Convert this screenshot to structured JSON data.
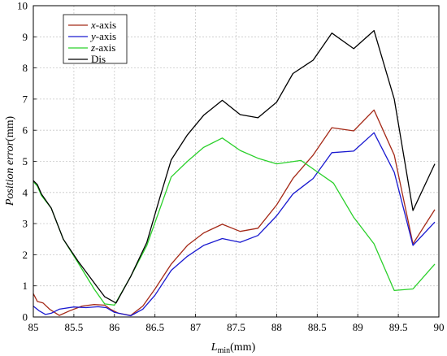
{
  "chart_data": {
    "type": "line",
    "xlabel": {
      "main": "L",
      "sub": "min",
      "unit": "(mm)"
    },
    "ylabel": {
      "main": "Position error",
      "unit": "(mm)"
    },
    "xlim": [
      85,
      90
    ],
    "ylim": [
      0,
      10
    ],
    "xticks": [
      "85",
      "85.5",
      "86",
      "86.5",
      "87",
      "87.5",
      "88",
      "88.5",
      "89",
      "89.5",
      "90"
    ],
    "yticks": [
      "0",
      "1",
      "2",
      "3",
      "4",
      "5",
      "6",
      "7",
      "8",
      "9",
      "10"
    ],
    "grid": true,
    "legend_position": "top-left",
    "series": [
      {
        "name": "x-axis",
        "italic": "x",
        "suffix": "-axis",
        "color": "#a52a18",
        "points": [
          [
            85.0,
            0.75
          ],
          [
            85.05,
            0.5
          ],
          [
            85.12,
            0.45
          ],
          [
            85.2,
            0.25
          ],
          [
            85.32,
            0.05
          ],
          [
            85.45,
            0.2
          ],
          [
            85.6,
            0.35
          ],
          [
            85.75,
            0.4
          ],
          [
            85.88,
            0.38
          ],
          [
            85.95,
            0.25
          ],
          [
            86.05,
            0.12
          ],
          [
            86.2,
            0.05
          ],
          [
            86.35,
            0.35
          ],
          [
            86.5,
            0.9
          ],
          [
            86.7,
            1.7
          ],
          [
            86.9,
            2.3
          ],
          [
            87.1,
            2.7
          ],
          [
            87.33,
            2.98
          ],
          [
            87.55,
            2.75
          ],
          [
            87.77,
            2.85
          ],
          [
            88.0,
            3.6
          ],
          [
            88.2,
            4.45
          ],
          [
            88.45,
            5.2
          ],
          [
            88.68,
            6.08
          ],
          [
            88.95,
            5.98
          ],
          [
            89.2,
            6.65
          ],
          [
            89.45,
            5.2
          ],
          [
            89.68,
            2.35
          ],
          [
            89.95,
            3.45
          ]
        ]
      },
      {
        "name": "y-axis",
        "italic": "y",
        "suffix": "-axis",
        "color": "#1a1ad0",
        "points": [
          [
            85.0,
            0.35
          ],
          [
            85.07,
            0.2
          ],
          [
            85.15,
            0.08
          ],
          [
            85.22,
            0.12
          ],
          [
            85.32,
            0.25
          ],
          [
            85.5,
            0.32
          ],
          [
            85.65,
            0.3
          ],
          [
            85.8,
            0.33
          ],
          [
            85.9,
            0.3
          ],
          [
            86.0,
            0.15
          ],
          [
            86.2,
            0.04
          ],
          [
            86.35,
            0.25
          ],
          [
            86.5,
            0.7
          ],
          [
            86.7,
            1.5
          ],
          [
            86.9,
            1.95
          ],
          [
            87.1,
            2.3
          ],
          [
            87.33,
            2.52
          ],
          [
            87.55,
            2.4
          ],
          [
            87.77,
            2.62
          ],
          [
            88.0,
            3.25
          ],
          [
            88.2,
            3.95
          ],
          [
            88.45,
            4.45
          ],
          [
            88.68,
            5.28
          ],
          [
            88.95,
            5.33
          ],
          [
            89.2,
            5.92
          ],
          [
            89.45,
            4.65
          ],
          [
            89.68,
            2.3
          ],
          [
            89.95,
            3.05
          ]
        ]
      },
      {
        "name": "z-axis",
        "italic": "z",
        "suffix": "-axis",
        "color": "#2ad02a",
        "points": [
          [
            85.0,
            4.35
          ],
          [
            85.05,
            4.2
          ],
          [
            85.1,
            3.9
          ],
          [
            85.22,
            3.5
          ],
          [
            85.37,
            2.5
          ],
          [
            85.55,
            1.75
          ],
          [
            85.75,
            0.9
          ],
          [
            85.88,
            0.42
          ],
          [
            86.0,
            0.38
          ],
          [
            86.2,
            1.3
          ],
          [
            86.4,
            2.3
          ],
          [
            86.55,
            3.4
          ],
          [
            86.7,
            4.5
          ],
          [
            86.9,
            5.0
          ],
          [
            87.1,
            5.45
          ],
          [
            87.33,
            5.75
          ],
          [
            87.55,
            5.35
          ],
          [
            87.77,
            5.1
          ],
          [
            88.0,
            4.92
          ],
          [
            88.3,
            5.03
          ],
          [
            88.7,
            4.3
          ],
          [
            88.95,
            3.2
          ],
          [
            89.2,
            2.35
          ],
          [
            89.45,
            0.85
          ],
          [
            89.68,
            0.9
          ],
          [
            89.95,
            1.7
          ]
        ]
      },
      {
        "name": "Dis",
        "italic": "",
        "suffix": "Dis",
        "color": "#000000",
        "points": [
          [
            85.0,
            4.38
          ],
          [
            85.05,
            4.25
          ],
          [
            85.1,
            3.95
          ],
          [
            85.22,
            3.5
          ],
          [
            85.37,
            2.5
          ],
          [
            85.55,
            1.8
          ],
          [
            85.75,
            1.1
          ],
          [
            85.88,
            0.65
          ],
          [
            86.02,
            0.45
          ],
          [
            86.2,
            1.3
          ],
          [
            86.4,
            2.4
          ],
          [
            86.55,
            3.75
          ],
          [
            86.7,
            5.05
          ],
          [
            86.9,
            5.85
          ],
          [
            87.1,
            6.48
          ],
          [
            87.33,
            6.96
          ],
          [
            87.55,
            6.5
          ],
          [
            87.77,
            6.4
          ],
          [
            88.0,
            6.9
          ],
          [
            88.2,
            7.82
          ],
          [
            88.45,
            8.25
          ],
          [
            88.68,
            9.12
          ],
          [
            88.95,
            8.62
          ],
          [
            89.2,
            9.2
          ],
          [
            89.45,
            7.0
          ],
          [
            89.68,
            3.42
          ],
          [
            89.95,
            4.92
          ]
        ]
      }
    ]
  }
}
